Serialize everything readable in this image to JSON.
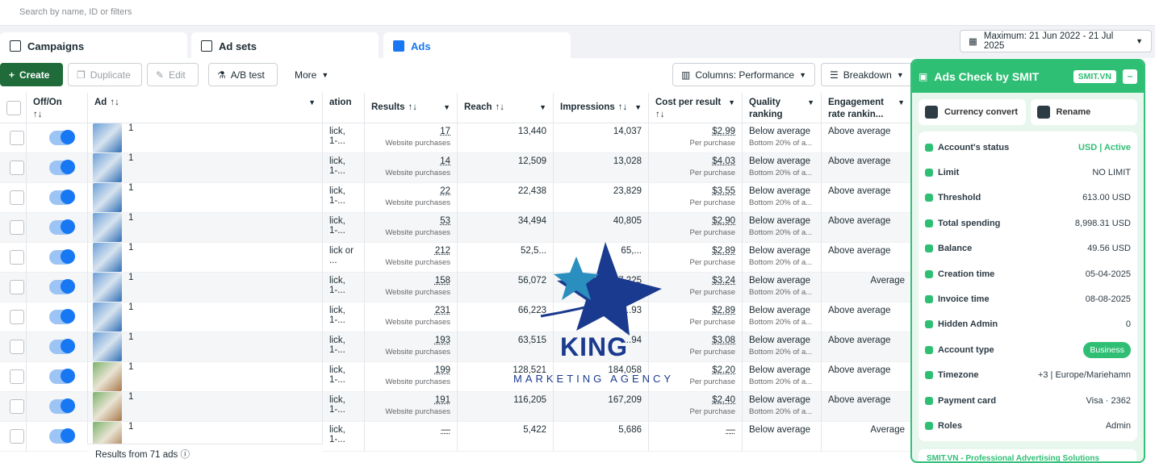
{
  "search": {
    "placeholder": "Search by name, ID or filters"
  },
  "tabs": [
    {
      "label": "Campaigns",
      "icon": "campaigns-icon"
    },
    {
      "label": "Ad sets",
      "icon": "adsets-icon"
    },
    {
      "label": "Ads",
      "icon": "ads-icon"
    }
  ],
  "date_range": "Maximum: 21 Jun 2022 - 21 Jul 2025",
  "toolbar": {
    "create": "Create",
    "duplicate": "Duplicate",
    "edit": "Edit",
    "ab_test": "A/B test",
    "more": "More",
    "columns": "Columns: Performance",
    "breakdown": "Breakdown"
  },
  "table": {
    "headers": {
      "offon": "Off/On",
      "ad": "Ad",
      "attribution": "ation",
      "results": "Results",
      "reach": "Reach",
      "impressions": "Impressions",
      "cpr": "Cost per result",
      "quality": "Quality ranking",
      "engagement": "Engagement rate rankin...",
      "sort_glyph": "↑↓"
    },
    "rows": [
      {
        "name": "1",
        "attr": "lick, 1-...",
        "results": "17",
        "results_sub": "Website purchases",
        "reach": "13,440",
        "impr": "14,037",
        "cpr": "$2.99",
        "cpr_sub": "Per purchase",
        "quality": "Below average",
        "quality_sub": "Bottom 20% of a...",
        "eng": "Above average",
        "thumb": "blue"
      },
      {
        "name": "1",
        "attr": "lick, 1-...",
        "results": "14",
        "results_sub": "Website purchases",
        "reach": "12,509",
        "impr": "13,028",
        "cpr": "$4.03",
        "cpr_sub": "Per purchase",
        "quality": "Below average",
        "quality_sub": "Bottom 20% of a...",
        "eng": "Above average",
        "thumb": "blue"
      },
      {
        "name": "1",
        "attr": "lick, 1-...",
        "results": "22",
        "results_sub": "Website purchases",
        "reach": "22,438",
        "impr": "23,829",
        "cpr": "$3.55",
        "cpr_sub": "Per purchase",
        "quality": "Below average",
        "quality_sub": "Bottom 20% of a...",
        "eng": "Above average",
        "thumb": "blue"
      },
      {
        "name": "1",
        "attr": "lick, 1-...",
        "results": "53",
        "results_sub": "Website purchases",
        "reach": "34,494",
        "impr": "40,805",
        "cpr": "$2.90",
        "cpr_sub": "Per purchase",
        "quality": "Below average",
        "quality_sub": "Bottom 20% of a...",
        "eng": "Above average",
        "thumb": "blue"
      },
      {
        "name": "1",
        "attr": "lick or ...",
        "results": "212",
        "results_sub": "Website purchases",
        "reach": "52,5...",
        "impr": "65,...",
        "cpr": "$2.89",
        "cpr_sub": "Per purchase",
        "quality": "Below average",
        "quality_sub": "Bottom 20% of a...",
        "eng": "Above average",
        "thumb": "blue"
      },
      {
        "name": "1",
        "attr": "lick, 1-...",
        "results": "158",
        "results_sub": "Website purchases",
        "reach": "56,072",
        "impr": "67,225",
        "cpr": "$3.24",
        "cpr_sub": "Per purchase",
        "quality": "Below average",
        "quality_sub": "Bottom 20% of a...",
        "eng": "Average",
        "thumb": "blue"
      },
      {
        "name": "1",
        "attr": "lick, 1-...",
        "results": "231",
        "results_sub": "Website purchases",
        "reach": "66,223",
        "impr": "8...93",
        "cpr": "$2.89",
        "cpr_sub": "Per purchase",
        "quality": "Below average",
        "quality_sub": "Bottom 20% of a...",
        "eng": "Above average",
        "thumb": "blue"
      },
      {
        "name": "1",
        "attr": "lick, 1-...",
        "results": "193",
        "results_sub": "Website purchases",
        "reach": "63,515",
        "impr": "...94",
        "cpr": "$3.08",
        "cpr_sub": "Per purchase",
        "quality": "Below average",
        "quality_sub": "Bottom 20% of a...",
        "eng": "Above average",
        "thumb": "blue"
      },
      {
        "name": "1",
        "attr": "lick, 1-...",
        "results": "199",
        "results_sub": "Website purchases",
        "reach": "128,521",
        "impr": "184,058",
        "cpr": "$2.20",
        "cpr_sub": "Per purchase",
        "quality": "Below average",
        "quality_sub": "Bottom 20% of a...",
        "eng": "Above average",
        "thumb": "green"
      },
      {
        "name": "1",
        "attr": "lick, 1-...",
        "results": "191",
        "results_sub": "Website purchases",
        "reach": "116,205",
        "impr": "167,209",
        "cpr": "$2.40",
        "cpr_sub": "Per purchase",
        "quality": "Below average",
        "quality_sub": "Bottom 20% of a...",
        "eng": "Above average",
        "thumb": "green"
      },
      {
        "name": "1",
        "attr": "lick, 1-...",
        "results": "—",
        "results_sub": "",
        "reach": "5,422",
        "impr": "5,686",
        "cpr": "—",
        "cpr_sub": "",
        "quality": "Below average",
        "quality_sub": "",
        "eng": "Average",
        "thumb": "green"
      }
    ],
    "footer": "Results from 71 ads"
  },
  "watermark": {
    "brand": "KING",
    "tagline": "MARKETING AGENCY"
  },
  "panel": {
    "title": "Ads Check by SMIT",
    "badge": "SMIT.VN",
    "minimize": "–",
    "currency_convert": "Currency convert",
    "rename": "Rename",
    "rows": [
      {
        "label": "Account's status",
        "value": "USD | Active",
        "style": "green"
      },
      {
        "label": "Limit",
        "value": "NO LIMIT",
        "style": ""
      },
      {
        "label": "Threshold",
        "value": "613.00 USD",
        "style": ""
      },
      {
        "label": "Total spending",
        "value": "8,998.31 USD",
        "style": ""
      },
      {
        "label": "Balance",
        "value": "49.56 USD",
        "style": ""
      },
      {
        "label": "Creation time",
        "value": "05-04-2025",
        "style": ""
      },
      {
        "label": "Invoice time",
        "value": "08-08-2025",
        "style": ""
      },
      {
        "label": "Hidden Admin",
        "value": "0",
        "style": ""
      },
      {
        "label": "Account type",
        "value": "Business",
        "style": "pill"
      },
      {
        "label": "Timezone",
        "value": "+3 | Europe/Mariehamn",
        "style": ""
      },
      {
        "label": "Payment card",
        "value": "Visa · 2362",
        "style": ""
      },
      {
        "label": "Roles",
        "value": "Admin",
        "style": ""
      }
    ],
    "footer": "SMIT.VN - Professional Advertising Solutions"
  },
  "colors": {
    "accent": "#1877f2",
    "create": "#1f6b3a",
    "smit": "#2fbf74"
  }
}
